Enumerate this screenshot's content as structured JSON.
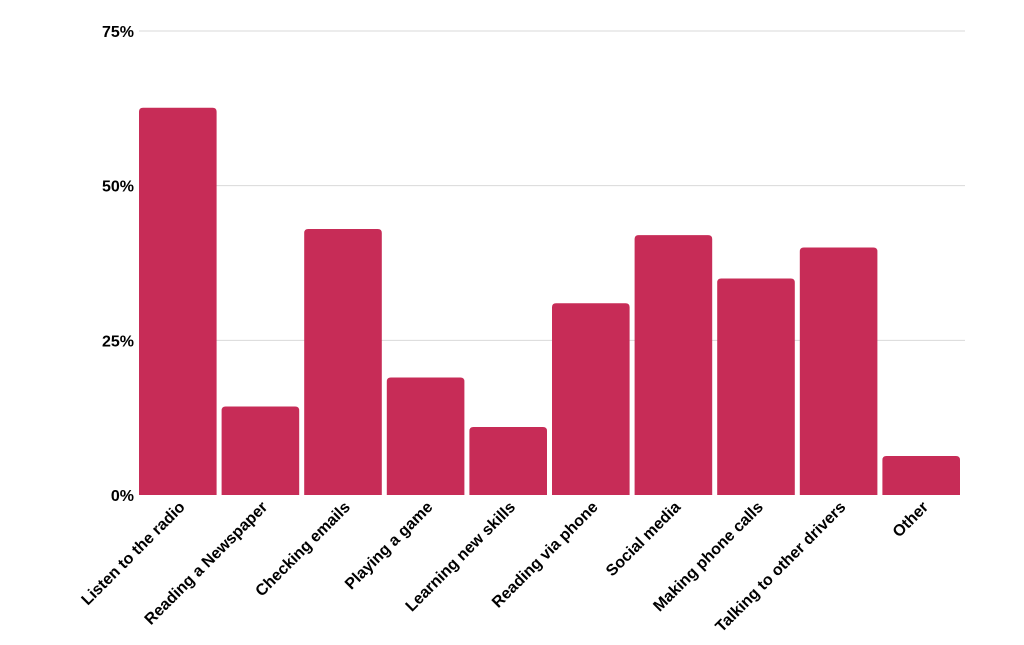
{
  "chart_data": {
    "type": "bar",
    "title": "",
    "xlabel": "",
    "ylabel": "",
    "ylim": [
      0,
      75
    ],
    "y_ticks": [
      0,
      25,
      50,
      75
    ],
    "y_tick_format": "%",
    "grid": true,
    "bar_color": "#c72c57",
    "categories": [
      "Listen to the radio",
      "Reading a Newspaper",
      "Checking emails",
      "Playing a game",
      "Learning new skills",
      "Reading via phone",
      "Social media",
      "Making phone calls",
      "Talking to other drivers",
      "Other"
    ],
    "values": [
      62.6,
      14.3,
      43,
      19,
      11,
      31,
      42,
      35,
      40,
      6.3
    ]
  }
}
